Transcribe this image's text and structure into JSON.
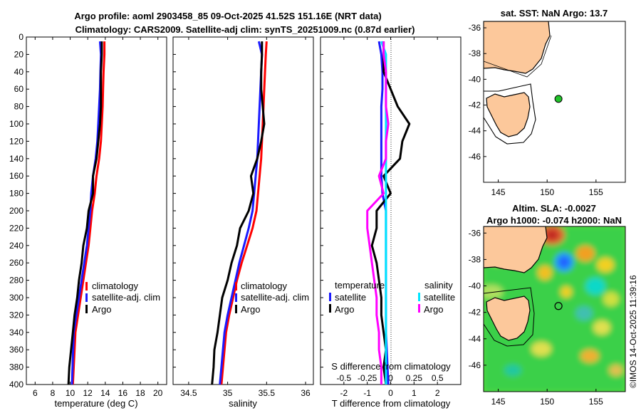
{
  "title_line1": "Argo profile: aoml 2903458_85 09-Oct-2025 41.52S 151.16E (NRT data)",
  "title_line2": "Climatology: CARS2009. Satellite-adj clim: synTS_20251009.nc (0.87d earlier)",
  "watermark": "©IMOS 14-Oct-2025 11:39:16",
  "colors": {
    "climatology": "#ff0000",
    "satellite": "#1a1aff",
    "argo": "#000000",
    "satellite_s": "#00e5ff",
    "argo_s": "#ff00ff",
    "land": "#fcc89b"
  },
  "chart_data": [
    {
      "id": "temperature",
      "type": "line",
      "xlabel": "temperature (deg C)",
      "xlim": [
        5,
        21
      ],
      "xticks": [
        6,
        8,
        10,
        12,
        14,
        16,
        18,
        20
      ],
      "xtick_labels": [
        "6",
        "8",
        "10",
        "12",
        "14",
        "16",
        "18",
        "20"
      ],
      "ylim": [
        0,
        400
      ],
      "yticks": [
        0,
        20,
        40,
        60,
        80,
        100,
        120,
        140,
        160,
        180,
        200,
        220,
        240,
        260,
        280,
        300,
        320,
        340,
        360,
        380,
        400
      ],
      "ytick_labels": [
        "0",
        "20",
        "40",
        "60",
        "80",
        "100",
        "120",
        "140",
        "160",
        "180",
        "200",
        "220",
        "240",
        "260",
        "280",
        "300",
        "320",
        "340",
        "360",
        "380",
        "400"
      ],
      "legend": [
        "climatology",
        "satellite-adj. clim",
        "Argo"
      ],
      "series": [
        {
          "name": "climatology",
          "color": "#ff0000",
          "x": [
            13.9,
            13.9,
            13.8,
            13.75,
            13.7,
            13.6,
            13.5,
            13.3,
            13.0,
            12.8,
            12.5,
            12.3,
            12.1,
            11.8,
            11.5,
            11.2,
            10.9,
            10.6,
            10.3
          ],
          "y": [
            5,
            20,
            40,
            60,
            80,
            100,
            120,
            140,
            160,
            180,
            200,
            220,
            240,
            260,
            280,
            300,
            320,
            340,
            400
          ]
        },
        {
          "name": "satellite-adj. clim",
          "color": "#1a1aff",
          "x": [
            13.4,
            13.5,
            13.45,
            13.4,
            13.3,
            13.2,
            13.1,
            12.9,
            12.6,
            12.4,
            12.3,
            12.1,
            11.9,
            11.6,
            11.3,
            11.0,
            10.7,
            10.4,
            10.2
          ],
          "y": [
            5,
            20,
            40,
            60,
            80,
            100,
            120,
            140,
            160,
            180,
            200,
            220,
            240,
            260,
            280,
            300,
            320,
            340,
            400
          ]
        },
        {
          "name": "Argo",
          "color": "#000000",
          "x": [
            13.6,
            13.6,
            13.5,
            13.5,
            13.5,
            13.4,
            13.2,
            13.0,
            12.6,
            12.6,
            12.1,
            11.9,
            11.5,
            11.3,
            11.0,
            10.8,
            10.5,
            10.3,
            10.1,
            9.9,
            9.8
          ],
          "y": [
            5,
            20,
            40,
            60,
            80,
            100,
            120,
            140,
            160,
            180,
            200,
            220,
            240,
            260,
            280,
            300,
            320,
            340,
            360,
            380,
            400
          ]
        }
      ]
    },
    {
      "id": "salinity",
      "type": "line",
      "xlabel": "salinity",
      "xlim": [
        34.3,
        36.1
      ],
      "xticks": [
        34.5,
        35,
        35.5,
        36
      ],
      "xtick_labels": [
        "34.5",
        "35",
        "35.5",
        "36"
      ],
      "ylim": [
        0,
        400
      ],
      "legend": [
        "climatology",
        "satellite-adj. clim",
        "Argo"
      ],
      "series": [
        {
          "name": "climatology",
          "color": "#ff0000",
          "x": [
            35.5,
            35.49,
            35.48,
            35.47,
            35.46,
            35.45,
            35.44,
            35.43,
            35.41,
            35.39,
            35.37,
            35.32,
            35.25,
            35.18,
            35.12,
            35.07,
            35.02,
            34.98,
            34.92
          ],
          "y": [
            5,
            20,
            40,
            60,
            80,
            100,
            120,
            140,
            160,
            180,
            200,
            220,
            240,
            260,
            280,
            300,
            320,
            340,
            400
          ]
        },
        {
          "name": "satellite-adj. clim",
          "color": "#1a1aff",
          "x": [
            35.4,
            35.44,
            35.43,
            35.42,
            35.41,
            35.4,
            35.39,
            35.38,
            35.36,
            35.34,
            35.32,
            35.27,
            35.21,
            35.15,
            35.1,
            35.05,
            35.0,
            34.96,
            34.9
          ],
          "y": [
            5,
            20,
            40,
            60,
            80,
            100,
            120,
            140,
            160,
            180,
            200,
            220,
            240,
            260,
            280,
            300,
            320,
            340,
            400
          ]
        },
        {
          "name": "Argo",
          "color": "#000000",
          "x": [
            35.44,
            35.44,
            35.43,
            35.43,
            35.45,
            35.47,
            35.43,
            35.38,
            35.3,
            35.33,
            35.27,
            35.16,
            35.12,
            35.05,
            35.0,
            34.93,
            34.9,
            34.87,
            34.83,
            34.82,
            34.8
          ],
          "y": [
            5,
            20,
            40,
            60,
            80,
            100,
            120,
            140,
            160,
            180,
            200,
            220,
            240,
            260,
            280,
            300,
            320,
            340,
            360,
            380,
            400
          ]
        }
      ]
    },
    {
      "id": "difference",
      "type": "line",
      "xlabel": "T difference from climatology",
      "xlabel2": "S difference from climatology",
      "xlim": [
        -3,
        3
      ],
      "xticks": [
        -2,
        -1,
        0,
        1,
        2
      ],
      "xtick_labels": [
        "-2",
        "-1",
        "0",
        "1",
        "2"
      ],
      "s_xticks": [
        -2,
        -1,
        0,
        1,
        2
      ],
      "s_xtick_labels": [
        "-0.5",
        "-0.25",
        "0",
        "0.25",
        "0.5"
      ],
      "ylim": [
        0,
        400
      ],
      "legend_titles": [
        "temperature",
        "salinity"
      ],
      "legend": [
        "satellite",
        "Argo",
        "satellite",
        "Argo"
      ],
      "series": [
        {
          "name": "T satellite",
          "color": "#1a1aff",
          "x": [
            -0.5,
            -0.4,
            -0.35,
            -0.35,
            -0.4,
            -0.4,
            -0.4,
            -0.4,
            -0.4,
            -0.35,
            -0.2,
            -0.2,
            -0.2,
            -0.2,
            -0.2,
            -0.2,
            -0.2,
            -0.2,
            -0.1
          ],
          "y": [
            5,
            20,
            40,
            60,
            80,
            100,
            120,
            140,
            160,
            180,
            200,
            220,
            240,
            260,
            280,
            300,
            320,
            340,
            400
          ]
        },
        {
          "name": "T Argo",
          "color": "#000000",
          "x": [
            -0.3,
            -0.3,
            -0.3,
            0.0,
            0.3,
            0.8,
            0.5,
            0.4,
            -0.3,
            0.0,
            -0.6,
            -0.6,
            -0.8,
            -0.6,
            -0.5,
            -0.4,
            -0.4,
            -0.3,
            -0.2,
            -0.3,
            -0.2
          ],
          "y": [
            5,
            20,
            40,
            60,
            80,
            100,
            120,
            140,
            160,
            180,
            200,
            220,
            240,
            260,
            280,
            300,
            320,
            340,
            360,
            380,
            400
          ]
        },
        {
          "name": "S satellite",
          "color": "#00e5ff",
          "x": [
            -0.4,
            -0.2,
            -0.2,
            -0.2,
            -0.2,
            -0.2,
            -0.2,
            -0.2,
            -0.2,
            -0.2,
            -0.2,
            -0.2,
            -0.2,
            -0.2,
            -0.2,
            -0.2,
            -0.2,
            -0.2,
            -0.2
          ],
          "y": [
            5,
            20,
            40,
            60,
            80,
            100,
            120,
            140,
            160,
            180,
            200,
            220,
            240,
            260,
            280,
            300,
            320,
            340,
            400
          ]
        },
        {
          "name": "S Argo",
          "color": "#ff00ff",
          "x": [
            -0.3,
            -0.3,
            -0.2,
            -0.2,
            -0.2,
            -0.1,
            -0.2,
            -0.2,
            -0.5,
            -0.3,
            -1.0,
            -1.0,
            -0.9,
            -0.8,
            -0.7,
            -0.6,
            -0.6,
            -0.5,
            -0.5,
            -0.4,
            -0.4
          ],
          "y": [
            5,
            20,
            40,
            60,
            80,
            100,
            120,
            140,
            160,
            180,
            200,
            220,
            240,
            260,
            280,
            300,
            320,
            340,
            360,
            380,
            400
          ]
        }
      ]
    },
    {
      "id": "sst_map",
      "type": "scatter",
      "title": "sat. SST: NaN Argo: 13.7",
      "xlim": [
        143.5,
        158
      ],
      "ylim": [
        -48,
        -35.5
      ],
      "xticks": [
        145,
        150,
        155
      ],
      "xtick_labels": [
        "145",
        "150",
        "155"
      ],
      "yticks": [
        -36,
        -38,
        -40,
        -42,
        -44,
        -46
      ],
      "ytick_labels": [
        "-36",
        "-38",
        "-40",
        "-42",
        "-44",
        "-46"
      ],
      "point": {
        "lon": 151.16,
        "lat": -41.52,
        "value": 13.7
      }
    },
    {
      "id": "sla_map",
      "type": "heatmap",
      "title_line1": "Altim. SLA: -0.0027",
      "title_line2": "Argo h1000: -0.074 h2000: NaN",
      "xlim": [
        143.5,
        158
      ],
      "ylim": [
        -48,
        -35.5
      ],
      "xticks": [
        145,
        150,
        155
      ],
      "xtick_labels": [
        "145",
        "150",
        "155"
      ],
      "yticks": [
        -36,
        -38,
        -40,
        -42,
        -44,
        -46
      ],
      "ytick_labels": [
        "-36",
        "-38",
        "-40",
        "-42",
        "-44",
        "-46"
      ],
      "point": {
        "lon": 151.16,
        "lat": -41.52
      }
    }
  ]
}
